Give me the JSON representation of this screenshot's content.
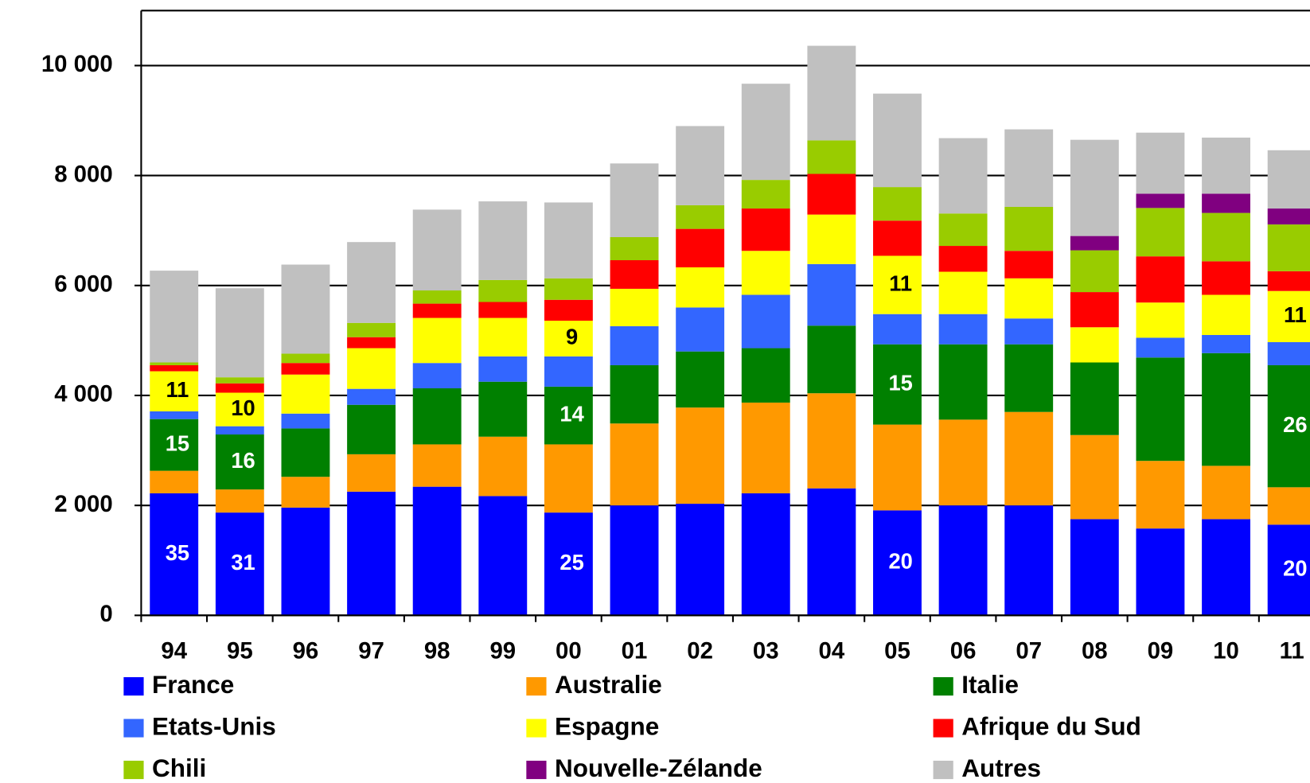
{
  "chart_data": {
    "type": "stacked_bar",
    "categories": [
      "94",
      "95",
      "96",
      "97",
      "98",
      "99",
      "00",
      "01",
      "02",
      "03",
      "04",
      "05",
      "06",
      "07",
      "08",
      "09",
      "10",
      "11"
    ],
    "series": [
      {
        "name": "France",
        "color": "#0000ff",
        "values": [
          2220,
          1870,
          1960,
          2250,
          2340,
          2170,
          1870,
          2000,
          2030,
          2220,
          2310,
          1910,
          2000,
          2000,
          1750,
          1580,
          1750,
          1650
        ]
      },
      {
        "name": "Australie",
        "color": "#ff9900",
        "values": [
          410,
          420,
          560,
          680,
          770,
          1080,
          1240,
          1490,
          1750,
          1650,
          1730,
          1560,
          1560,
          1700,
          1530,
          1230,
          970,
          680
        ]
      },
      {
        "name": "Italie",
        "color": "#008000",
        "values": [
          940,
          1000,
          880,
          900,
          1020,
          1000,
          1050,
          1060,
          1020,
          990,
          1230,
          1460,
          1370,
          1230,
          1320,
          1880,
          2050,
          2220
        ]
      },
      {
        "name": "Etats-Unis",
        "color": "#3366ff",
        "values": [
          140,
          150,
          270,
          290,
          460,
          460,
          550,
          710,
          800,
          970,
          1120,
          550,
          550,
          470,
          0,
          360,
          330,
          420
        ]
      },
      {
        "name": "Espagne",
        "color": "#ffff00",
        "values": [
          730,
          610,
          710,
          740,
          820,
          700,
          650,
          680,
          730,
          800,
          900,
          1060,
          770,
          730,
          640,
          640,
          730,
          930
        ]
      },
      {
        "name": "Afrique du Sud",
        "color": "#ff0000",
        "values": [
          110,
          170,
          210,
          200,
          260,
          290,
          380,
          520,
          700,
          770,
          740,
          640,
          470,
          500,
          640,
          840,
          610,
          360
        ]
      },
      {
        "name": "Chili",
        "color": "#99cc00",
        "values": [
          50,
          110,
          170,
          260,
          240,
          400,
          390,
          420,
          430,
          520,
          610,
          610,
          590,
          800,
          760,
          880,
          880,
          850
        ]
      },
      {
        "name": "Nouvelle-Zélande",
        "color": "#800080",
        "values": [
          0,
          0,
          0,
          0,
          0,
          0,
          0,
          0,
          0,
          0,
          0,
          0,
          0,
          0,
          260,
          260,
          350,
          290
        ]
      },
      {
        "name": "Autres",
        "color": "#c0c0c0",
        "values": [
          1670,
          1620,
          1620,
          1470,
          1470,
          1430,
          1380,
          1340,
          1440,
          1750,
          1720,
          1700,
          1370,
          1410,
          1750,
          1110,
          1020,
          1060
        ]
      }
    ],
    "annotations": [
      {
        "category": "94",
        "series": "France",
        "value": 35
      },
      {
        "category": "94",
        "series": "Italie",
        "value": 15
      },
      {
        "category": "94",
        "series": "Espagne",
        "value": 11
      },
      {
        "category": "95",
        "series": "France",
        "value": 31
      },
      {
        "category": "95",
        "series": "Italie",
        "value": 16
      },
      {
        "category": "95",
        "series": "Espagne",
        "value": 10
      },
      {
        "category": "00",
        "series": "France",
        "value": 25
      },
      {
        "category": "00",
        "series": "Italie",
        "value": 14
      },
      {
        "category": "00",
        "series": "Espagne",
        "value": 9
      },
      {
        "category": "05",
        "series": "France",
        "value": 20
      },
      {
        "category": "05",
        "series": "Italie",
        "value": 15
      },
      {
        "category": "05",
        "series": "Espagne",
        "value": 11
      },
      {
        "category": "11",
        "series": "France",
        "value": 20
      },
      {
        "category": "11",
        "series": "Italie",
        "value": 26
      },
      {
        "category": "11",
        "series": "Espagne",
        "value": 11
      }
    ],
    "ylim": [
      0,
      11000
    ],
    "yticks": [
      0,
      {
        "value": 2000,
        "label": "2 000"
      },
      {
        "value": 4000,
        "label": "4 000"
      },
      {
        "value": 6000,
        "label": "6 000"
      },
      {
        "value": 8000,
        "label": "8 000"
      },
      {
        "value": 10000,
        "label": "10 000"
      }
    ],
    "grid": true,
    "legend": "bottom"
  }
}
